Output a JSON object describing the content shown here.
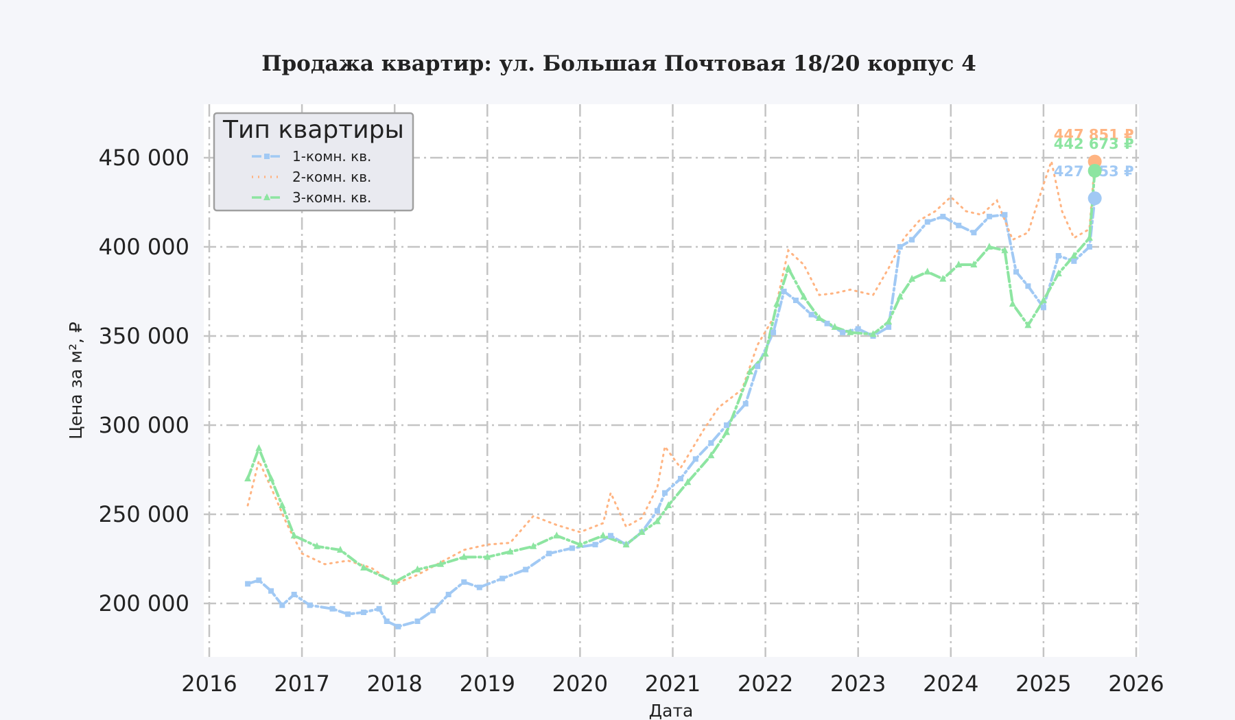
{
  "chart_data": {
    "type": "line",
    "title": "Продажа квартир: ул. Большая Почтовая 18/20 корпус 4",
    "xlabel": "Дата",
    "ylabel": "Цена за м², ₽",
    "xlim": [
      2016.0,
      2026.0
    ],
    "ylim": [
      170000,
      480000
    ],
    "x_ticks": [
      "2016",
      "2017",
      "2018",
      "2019",
      "2020",
      "2021",
      "2022",
      "2023",
      "2024",
      "2025",
      "2026"
    ],
    "y_ticks": [
      {
        "value": 200000,
        "label": "200 000"
      },
      {
        "value": 250000,
        "label": "250 000"
      },
      {
        "value": 300000,
        "label": "300 000"
      },
      {
        "value": 350000,
        "label": "350 000"
      },
      {
        "value": 400000,
        "label": "400 000"
      },
      {
        "value": 450000,
        "label": "450 000"
      }
    ],
    "grid": true,
    "legend": {
      "title": "Тип квартиры",
      "placement": "top-left"
    },
    "series": [
      {
        "name": "1-комн. кв.",
        "color": "#a1c9f4",
        "style": "dashdot-square",
        "last_value": 427253,
        "last_label": "427 253 ₽",
        "points": [
          [
            "2016-06-01",
            211000
          ],
          [
            "2016-07-15",
            213000
          ],
          [
            "2016-09-01",
            207000
          ],
          [
            "2016-10-15",
            199000
          ],
          [
            "2016-12-01",
            205000
          ],
          [
            "2017-02-01",
            199000
          ],
          [
            "2017-05-01",
            197000
          ],
          [
            "2017-07-01",
            194000
          ],
          [
            "2017-09-01",
            195000
          ],
          [
            "2017-11-01",
            197000
          ],
          [
            "2017-12-01",
            190000
          ],
          [
            "2018-01-15",
            187000
          ],
          [
            "2018-04-01",
            190000
          ],
          [
            "2018-06-01",
            196000
          ],
          [
            "2018-08-01",
            205000
          ],
          [
            "2018-10-01",
            212000
          ],
          [
            "2018-12-01",
            209000
          ],
          [
            "2019-03-01",
            214000
          ],
          [
            "2019-06-01",
            219000
          ],
          [
            "2019-09-01",
            228000
          ],
          [
            "2019-12-01",
            231000
          ],
          [
            "2020-03-01",
            233000
          ],
          [
            "2020-05-01",
            238000
          ],
          [
            "2020-07-01",
            233000
          ],
          [
            "2020-09-01",
            240000
          ],
          [
            "2020-11-01",
            252000
          ],
          [
            "2020-12-01",
            262000
          ],
          [
            "2021-02-01",
            270000
          ],
          [
            "2021-04-01",
            281000
          ],
          [
            "2021-06-01",
            290000
          ],
          [
            "2021-08-01",
            300000
          ],
          [
            "2021-10-15",
            312000
          ],
          [
            "2021-12-01",
            333000
          ],
          [
            "2022-02-01",
            352000
          ],
          [
            "2022-03-15",
            375000
          ],
          [
            "2022-05-01",
            370000
          ],
          [
            "2022-07-01",
            362000
          ],
          [
            "2022-09-01",
            357000
          ],
          [
            "2022-11-01",
            352000
          ],
          [
            "2023-01-01",
            354000
          ],
          [
            "2023-03-01",
            350000
          ],
          [
            "2023-05-01",
            355000
          ],
          [
            "2023-06-15",
            400000
          ],
          [
            "2023-08-01",
            404000
          ],
          [
            "2023-10-01",
            414000
          ],
          [
            "2023-12-01",
            417000
          ],
          [
            "2024-02-01",
            412000
          ],
          [
            "2024-04-01",
            408000
          ],
          [
            "2024-06-01",
            417000
          ],
          [
            "2024-08-01",
            418000
          ],
          [
            "2024-09-15",
            386000
          ],
          [
            "2024-11-01",
            378000
          ],
          [
            "2025-01-01",
            366000
          ],
          [
            "2025-03-01",
            395000
          ],
          [
            "2025-05-01",
            392000
          ],
          [
            "2025-07-01",
            400000
          ],
          [
            "2025-07-22",
            427253
          ]
        ]
      },
      {
        "name": "2-комн. кв.",
        "color": "#ffb482",
        "style": "dotted",
        "last_value": 447851,
        "last_label": "447 851 ₽",
        "points": [
          [
            "2016-06-01",
            255000
          ],
          [
            "2016-07-15",
            280000
          ],
          [
            "2016-09-01",
            265000
          ],
          [
            "2016-11-01",
            245000
          ],
          [
            "2017-01-01",
            228000
          ],
          [
            "2017-04-01",
            222000
          ],
          [
            "2017-07-01",
            224000
          ],
          [
            "2017-10-01",
            220000
          ],
          [
            "2018-01-01",
            211000
          ],
          [
            "2018-04-01",
            216000
          ],
          [
            "2018-07-01",
            223000
          ],
          [
            "2018-10-01",
            230000
          ],
          [
            "2019-01-01",
            233000
          ],
          [
            "2019-04-01",
            234000
          ],
          [
            "2019-07-01",
            249000
          ],
          [
            "2019-10-01",
            244000
          ],
          [
            "2020-01-01",
            240000
          ],
          [
            "2020-04-01",
            245000
          ],
          [
            "2020-05-01",
            262000
          ],
          [
            "2020-07-01",
            243000
          ],
          [
            "2020-09-01",
            248000
          ],
          [
            "2020-11-01",
            265000
          ],
          [
            "2020-12-01",
            288000
          ],
          [
            "2021-02-01",
            276000
          ],
          [
            "2021-05-01",
            297000
          ],
          [
            "2021-07-01",
            310000
          ],
          [
            "2021-10-01",
            320000
          ],
          [
            "2021-12-01",
            345000
          ],
          [
            "2022-02-01",
            360000
          ],
          [
            "2022-04-01",
            398000
          ],
          [
            "2022-06-01",
            390000
          ],
          [
            "2022-08-01",
            373000
          ],
          [
            "2022-10-01",
            374000
          ],
          [
            "2022-12-01",
            376000
          ],
          [
            "2023-03-01",
            373000
          ],
          [
            "2023-05-01",
            388000
          ],
          [
            "2023-07-01",
            405000
          ],
          [
            "2023-09-01",
            415000
          ],
          [
            "2023-11-01",
            420000
          ],
          [
            "2024-01-01",
            428000
          ],
          [
            "2024-03-01",
            420000
          ],
          [
            "2024-05-01",
            418000
          ],
          [
            "2024-07-01",
            426000
          ],
          [
            "2024-09-01",
            404000
          ],
          [
            "2024-11-01",
            408000
          ],
          [
            "2025-01-01",
            435000
          ],
          [
            "2025-02-01",
            448000
          ],
          [
            "2025-03-15",
            420000
          ],
          [
            "2025-05-01",
            405000
          ],
          [
            "2025-07-01",
            410000
          ],
          [
            "2025-07-22",
            447851
          ]
        ]
      },
      {
        "name": "3-комн. кв.",
        "color": "#8de5a1",
        "style": "dashdot-triangle",
        "last_value": 442673,
        "last_label": "442 673 ₽",
        "points": [
          [
            "2016-06-01",
            270000
          ],
          [
            "2016-07-15",
            287000
          ],
          [
            "2016-09-01",
            270000
          ],
          [
            "2016-10-15",
            255000
          ],
          [
            "2016-12-01",
            238000
          ],
          [
            "2017-03-01",
            232000
          ],
          [
            "2017-06-01",
            230000
          ],
          [
            "2017-09-01",
            220000
          ],
          [
            "2018-01-01",
            212000
          ],
          [
            "2018-04-01",
            219000
          ],
          [
            "2018-07-01",
            222000
          ],
          [
            "2018-10-01",
            226000
          ],
          [
            "2019-01-01",
            226000
          ],
          [
            "2019-04-01",
            229000
          ],
          [
            "2019-07-01",
            232000
          ],
          [
            "2019-10-01",
            238000
          ],
          [
            "2020-01-01",
            233000
          ],
          [
            "2020-04-01",
            238000
          ],
          [
            "2020-07-01",
            233000
          ],
          [
            "2020-09-01",
            240000
          ],
          [
            "2020-11-01",
            246000
          ],
          [
            "2020-12-15",
            255000
          ],
          [
            "2021-03-01",
            268000
          ],
          [
            "2021-06-01",
            283000
          ],
          [
            "2021-08-01",
            296000
          ],
          [
            "2021-11-01",
            330000
          ],
          [
            "2022-01-01",
            340000
          ],
          [
            "2022-02-15",
            368000
          ],
          [
            "2022-04-01",
            388000
          ],
          [
            "2022-06-01",
            372000
          ],
          [
            "2022-08-01",
            360000
          ],
          [
            "2022-10-01",
            355000
          ],
          [
            "2022-12-01",
            352000
          ],
          [
            "2023-03-01",
            351000
          ],
          [
            "2023-05-01",
            358000
          ],
          [
            "2023-06-15",
            372000
          ],
          [
            "2023-08-01",
            382000
          ],
          [
            "2023-10-01",
            386000
          ],
          [
            "2023-12-01",
            382000
          ],
          [
            "2024-02-01",
            390000
          ],
          [
            "2024-04-01",
            390000
          ],
          [
            "2024-06-01",
            400000
          ],
          [
            "2024-08-01",
            398000
          ],
          [
            "2024-09-01",
            368000
          ],
          [
            "2024-11-01",
            356000
          ],
          [
            "2025-01-01",
            370000
          ],
          [
            "2025-03-01",
            385000
          ],
          [
            "2025-05-01",
            395000
          ],
          [
            "2025-07-01",
            405000
          ],
          [
            "2025-07-22",
            442673
          ]
        ]
      }
    ]
  }
}
